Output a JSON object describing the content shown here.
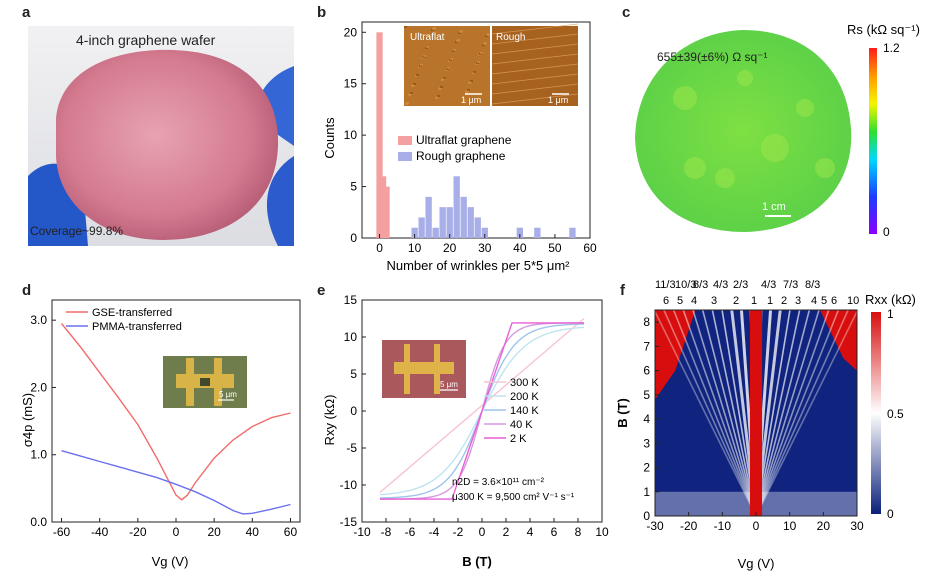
{
  "panels": {
    "a": {
      "label": "a",
      "title": "4-inch graphene wafer",
      "coverage": "Coverage~99.8%"
    },
    "b": {
      "label": "b",
      "inset_left": "Ultraflat",
      "inset_right": "Rough",
      "scalebar": "1 μm"
    },
    "c": {
      "label": "c",
      "annotation": "655±39(±6%) Ω sq⁻¹",
      "colorbar_max": "1.2",
      "colorbar_min": "0",
      "scalebar": "1 cm"
    },
    "d": {
      "label": "d",
      "inset_scalebar": "5 μm"
    },
    "e": {
      "label": "e",
      "inset_scalebar": "5 μm",
      "note1": "n2D = 3.6×10¹¹ cm⁻²",
      "note2": "μ300 K = 9,500 cm² V⁻¹ s⁻¹"
    },
    "f": {
      "label": "f",
      "colorbar_max": "1",
      "colorbar_mid": "0.5",
      "colorbar_min": "0",
      "top_row1": [
        "11/3",
        "10/3",
        "8/3",
        "4/3",
        "2/3",
        "4/3",
        "7/3",
        "8/3"
      ],
      "top_row2": [
        "6",
        "5",
        "4",
        "3",
        "2",
        "1",
        "1",
        "2",
        "3",
        "4",
        "5",
        "6",
        "10"
      ]
    }
  },
  "chart_data": [
    {
      "id": "b",
      "type": "bar",
      "xlabel": "Number of wrinkles per 5*5 μm²",
      "ylabel": "Counts",
      "xlim": [
        -5,
        60
      ],
      "ylim": [
        0,
        21
      ],
      "xticks": [
        0,
        10,
        20,
        30,
        40,
        50,
        60
      ],
      "yticks": [
        0,
        5,
        10,
        15,
        20
      ],
      "legend_position": "center-right",
      "series": [
        {
          "name": "Ultraflat graphene",
          "color": "#f4a0a0",
          "bins": [
            [
              0,
              20
            ],
            [
              1,
              6
            ],
            [
              2,
              5
            ]
          ]
        },
        {
          "name": "Rough graphene",
          "color": "#a8aee8",
          "bins": [
            [
              10,
              1
            ],
            [
              12,
              2
            ],
            [
              14,
              4
            ],
            [
              16,
              1
            ],
            [
              18,
              3
            ],
            [
              20,
              3
            ],
            [
              22,
              6
            ],
            [
              24,
              4
            ],
            [
              26,
              3
            ],
            [
              28,
              2
            ],
            [
              30,
              1
            ],
            [
              40,
              1
            ],
            [
              45,
              1
            ],
            [
              55,
              1
            ]
          ]
        }
      ]
    },
    {
      "id": "c",
      "type": "heatmap",
      "colorbar_label": "Rs (kΩ sq⁻¹)",
      "colorbar_range": [
        0,
        1.2
      ]
    },
    {
      "id": "d",
      "type": "line",
      "xlabel": "Vg (V)",
      "ylabel": "σ4p (mS)",
      "xlim": [
        -65,
        65
      ],
      "ylim": [
        0,
        3.3
      ],
      "xticks": [
        -60,
        -40,
        -20,
        0,
        20,
        40,
        60
      ],
      "yticks": [
        0.0,
        1.0,
        2.0,
        3.0
      ],
      "legend_position": "top-left",
      "series": [
        {
          "name": "GSE-transferred",
          "color": "#f26b6b",
          "x": [
            -60,
            -50,
            -40,
            -30,
            -20,
            -10,
            0,
            3,
            6,
            10,
            20,
            30,
            40,
            50,
            60
          ],
          "y": [
            2.95,
            2.6,
            2.22,
            1.84,
            1.45,
            0.95,
            0.4,
            0.33,
            0.4,
            0.58,
            0.95,
            1.22,
            1.42,
            1.55,
            1.62
          ]
        },
        {
          "name": "PMMA-transferred",
          "color": "#6a70ee",
          "x": [
            -60,
            -50,
            -40,
            -30,
            -20,
            -10,
            0,
            10,
            20,
            30,
            35,
            40,
            50,
            60
          ],
          "y": [
            1.06,
            0.98,
            0.9,
            0.82,
            0.74,
            0.66,
            0.56,
            0.45,
            0.32,
            0.17,
            0.12,
            0.13,
            0.19,
            0.26
          ]
        }
      ]
    },
    {
      "id": "e",
      "type": "line",
      "xlabel": "B (T)",
      "ylabel": "Rxy (kΩ)",
      "xlim": [
        -10,
        10
      ],
      "ylim": [
        -15,
        15
      ],
      "xticks": [
        -10,
        -8,
        -6,
        -4,
        -2,
        0,
        2,
        4,
        6,
        8,
        10
      ],
      "yticks": [
        -15,
        -10,
        -5,
        0,
        5,
        10,
        15
      ],
      "legend_position": "center-right",
      "series": [
        {
          "name": "300 K",
          "color": "#f7c4d2",
          "x": [
            -8.5,
            8.5
          ],
          "y": [
            -11,
            12.5
          ],
          "kind": "linear"
        },
        {
          "name": "200 K",
          "color": "#bfe3f2",
          "kind": "sat",
          "bsat": 6.5,
          "rsat": 11.5
        },
        {
          "name": "140 K",
          "color": "#9ec5ec",
          "kind": "sat",
          "bsat": 5.0,
          "rsat": 11.8
        },
        {
          "name": "40 K",
          "color": "#d59ae0",
          "kind": "sat",
          "bsat": 3.5,
          "rsat": 11.9
        },
        {
          "name": "2 K",
          "color": "#e85fd6",
          "kind": "step",
          "bsat": 2.5,
          "rsat": 11.9
        }
      ]
    },
    {
      "id": "f",
      "type": "heatmap",
      "xlabel": "Vg (V)",
      "ylabel": "B (T)",
      "xlim": [
        -30,
        30
      ],
      "ylim": [
        0,
        8.5
      ],
      "xticks": [
        -30,
        -20,
        -10,
        0,
        10,
        20,
        30
      ],
      "yticks": [
        0,
        1,
        2,
        3,
        4,
        5,
        6,
        7,
        8
      ],
      "colorbar_label": "Rxx (kΩ)",
      "colorbar_range": [
        0,
        1
      ]
    }
  ]
}
